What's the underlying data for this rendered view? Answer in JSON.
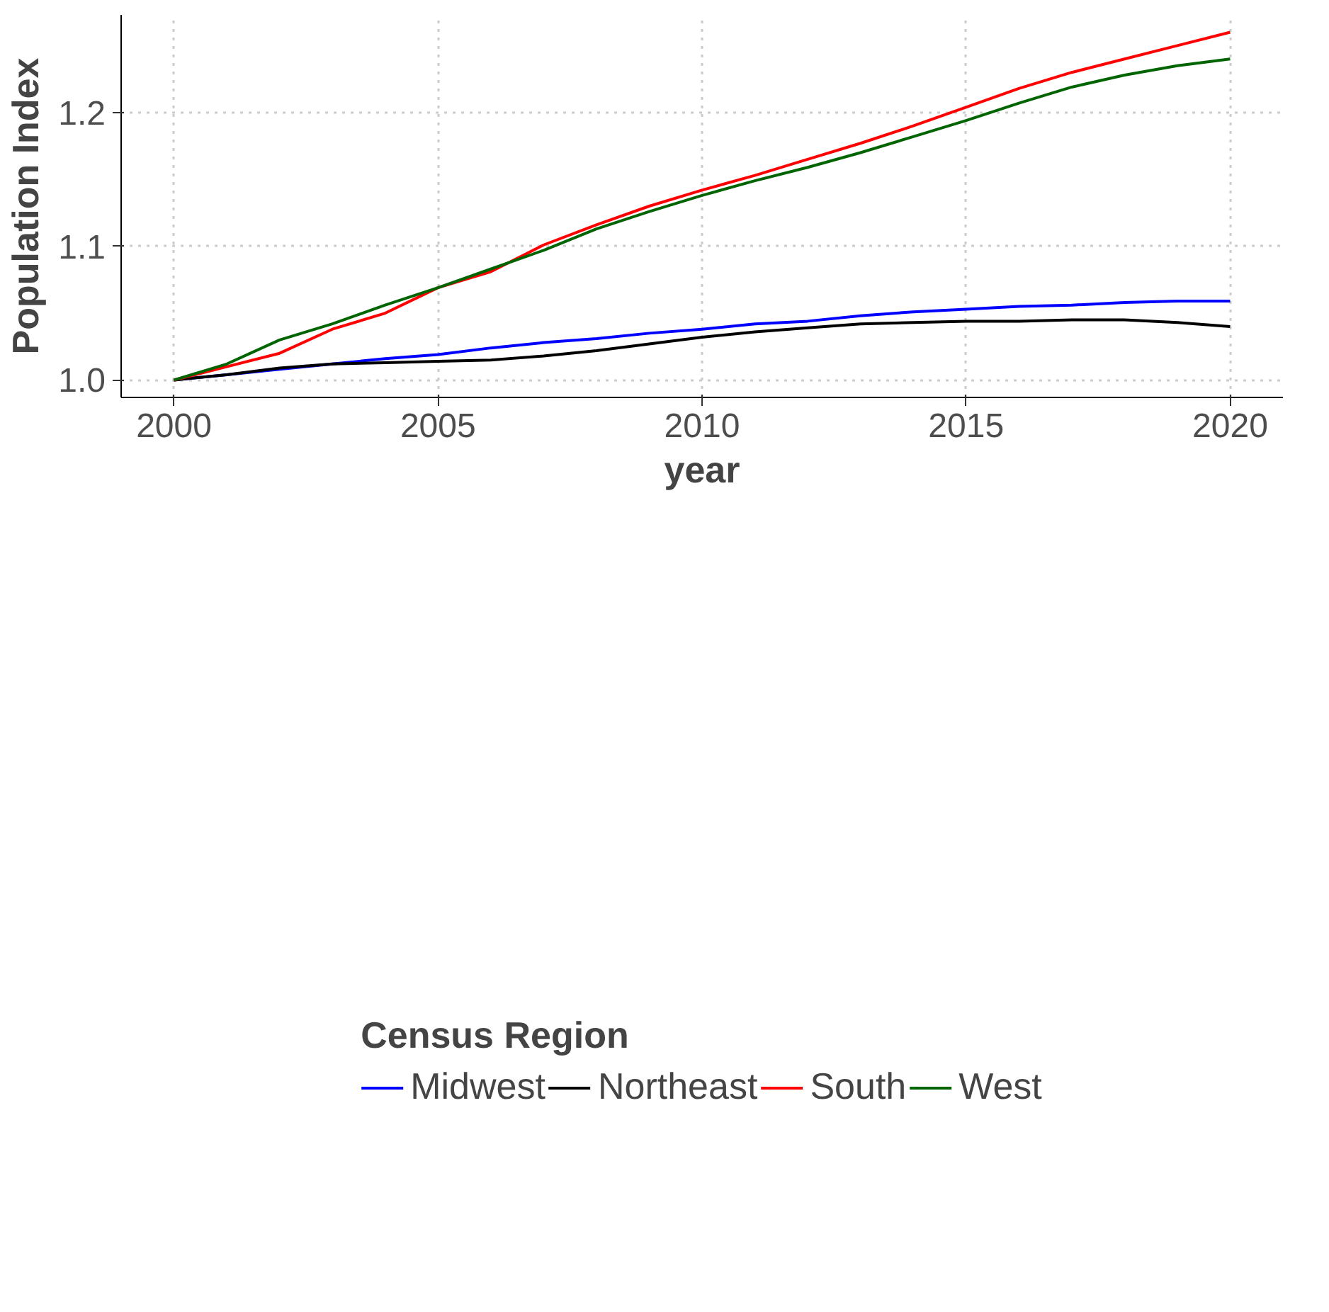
{
  "chart_data": {
    "type": "line",
    "xlabel": "year",
    "ylabel": "Population Index",
    "legend_title": "Census Region",
    "legend": "bottom",
    "grid": true,
    "line_style": "solid",
    "x": [
      2000,
      2001,
      2002,
      2003,
      2004,
      2005,
      2006,
      2007,
      2008,
      2009,
      2010,
      2011,
      2012,
      2013,
      2014,
      2015,
      2016,
      2017,
      2018,
      2019,
      2020
    ],
    "xlim": [
      1999,
      2021
    ],
    "xticks": [
      2000,
      2005,
      2010,
      2015,
      2020
    ],
    "ylim": [
      0.987,
      1.273
    ],
    "yticks": [
      {
        "value": 1.0,
        "label": "1.0"
      },
      {
        "value": 1.1,
        "label": "1.1"
      },
      {
        "value": 1.2,
        "label": "1.2"
      }
    ],
    "series": [
      {
        "name": "Midwest",
        "color": "#0000ff",
        "values": [
          1.0,
          1.004,
          1.008,
          1.012,
          1.016,
          1.019,
          1.024,
          1.028,
          1.031,
          1.035,
          1.038,
          1.042,
          1.044,
          1.048,
          1.051,
          1.053,
          1.055,
          1.056,
          1.058,
          1.059,
          1.059
        ]
      },
      {
        "name": "Northeast",
        "color": "#000000",
        "values": [
          1.0,
          1.004,
          1.009,
          1.012,
          1.013,
          1.014,
          1.015,
          1.018,
          1.022,
          1.027,
          1.032,
          1.036,
          1.039,
          1.042,
          1.043,
          1.044,
          1.044,
          1.045,
          1.045,
          1.043,
          1.04
        ]
      },
      {
        "name": "South",
        "color": "#ff0000",
        "values": [
          1.0,
          1.01,
          1.02,
          1.038,
          1.05,
          1.069,
          1.081,
          1.101,
          1.116,
          1.13,
          1.142,
          1.153,
          1.165,
          1.177,
          1.19,
          1.204,
          1.218,
          1.23,
          1.24,
          1.25,
          1.26
        ]
      },
      {
        "name": "West",
        "color": "#006400",
        "values": [
          1.0,
          1.012,
          1.03,
          1.042,
          1.056,
          1.069,
          1.083,
          1.097,
          1.113,
          1.126,
          1.138,
          1.149,
          1.159,
          1.17,
          1.182,
          1.194,
          1.207,
          1.219,
          1.228,
          1.235,
          1.24
        ]
      }
    ]
  }
}
